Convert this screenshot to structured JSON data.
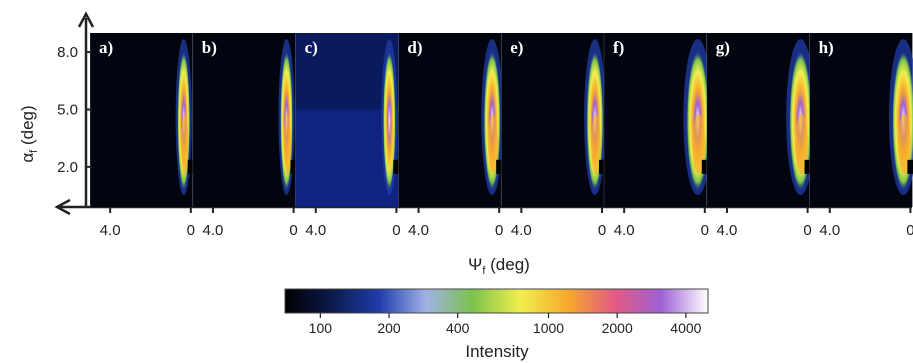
{
  "chart_data": {
    "type": "heatmap",
    "panels": [
      "a)",
      "b)",
      "c)",
      "d)",
      "e)",
      "f)",
      "g)",
      "h)"
    ],
    "x_axis": {
      "label_main": "Ψ",
      "label_sub": "f",
      "label_unit": " (deg)",
      "tick_labels": [
        "4.0",
        "0"
      ],
      "ticks": [
        4.0,
        0
      ],
      "range": [
        5.0,
        0
      ]
    },
    "y_axis": {
      "label_main": "α",
      "label_sub": "f",
      "label_unit": " (deg)",
      "tick_labels": [
        "8.0",
        "5.0",
        "2.0"
      ],
      "ticks": [
        8.0,
        5.0,
        2.0
      ],
      "range": [
        -0.1,
        9.0
      ]
    },
    "colorbar": {
      "label": "Intensity",
      "scale": "log",
      "range": [
        70,
        5000
      ],
      "tick_labels": [
        "100",
        "200",
        "400",
        "1000",
        "2000",
        "4000"
      ],
      "ticks": [
        100,
        200,
        400,
        1000,
        2000,
        4000
      ],
      "colormap": [
        "#000000",
        "#0c1a4c",
        "#1f3cab",
        "#9fb1e6",
        "#7cc24a",
        "#f1ef4f",
        "#f7aa2b",
        "#e35a82",
        "#9f61d6",
        "#ffffff"
      ]
    }
  }
}
